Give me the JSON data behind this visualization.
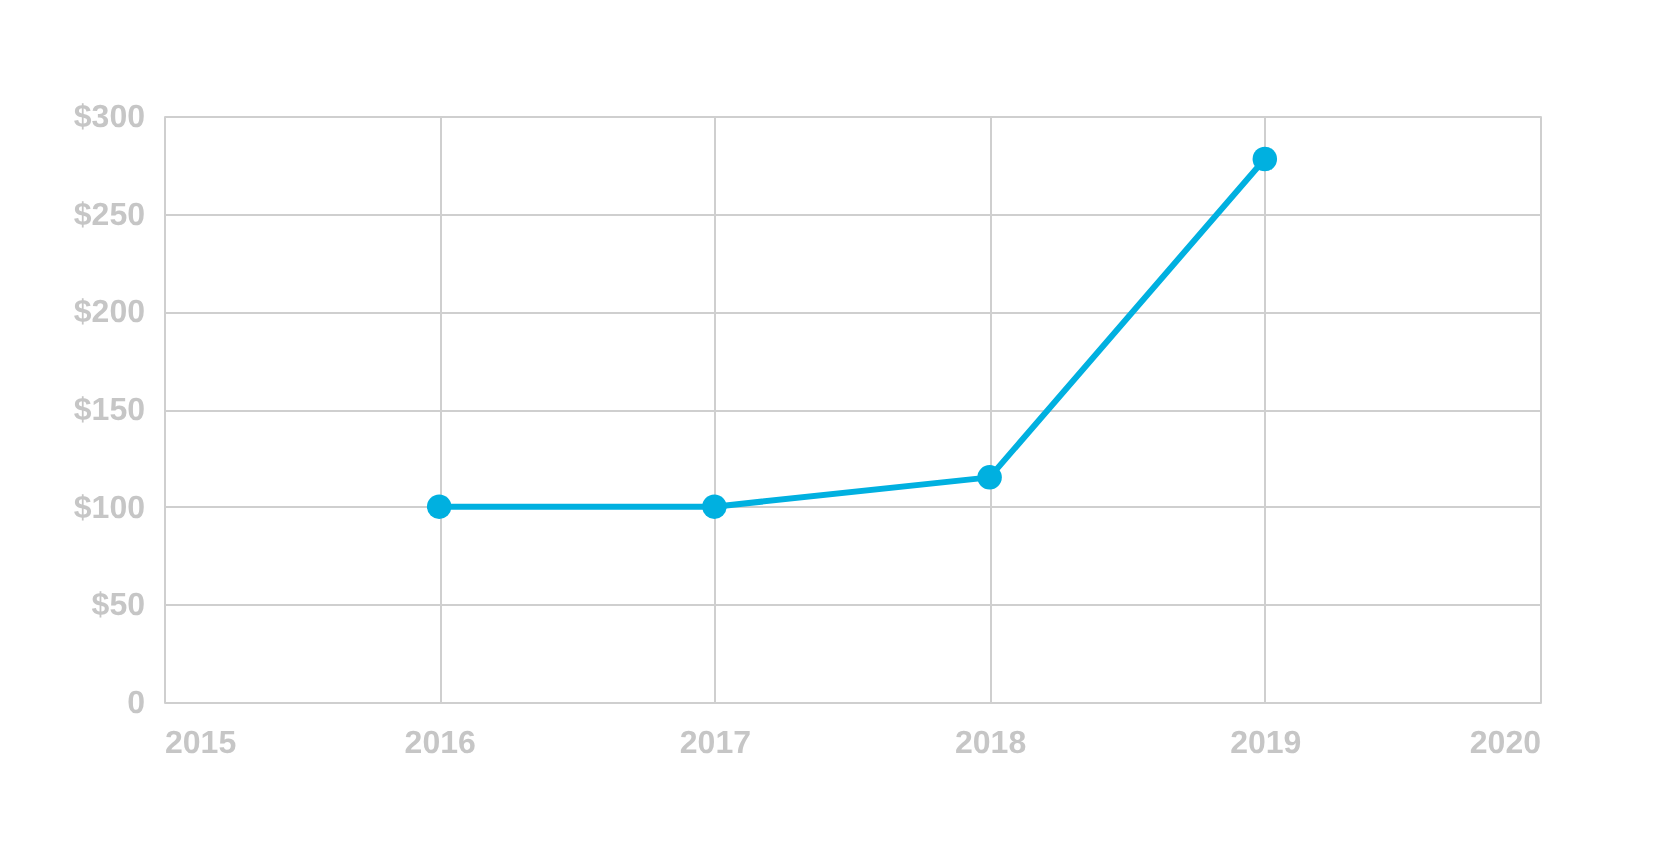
{
  "chart_data": {
    "type": "line",
    "x": [
      2016,
      2017,
      2018,
      2019
    ],
    "series": [
      {
        "color": "#00b0e0",
        "values": [
          100,
          100,
          115,
          278
        ]
      }
    ],
    "xlim": [
      2015,
      2020
    ],
    "xticks": [
      2015,
      2016,
      2017,
      2018,
      2019,
      2020
    ],
    "ylim": [
      0,
      300
    ],
    "yticks": [
      0,
      {
        "value": 50,
        "label": "$50"
      },
      {
        "value": 100,
        "label": "$100"
      },
      {
        "value": 150,
        "label": "$150"
      },
      {
        "value": 200,
        "label": "$200"
      },
      {
        "value": 250,
        "label": "$250"
      },
      {
        "value": 300,
        "label": "$300"
      }
    ],
    "grid": true,
    "marker": "circle",
    "line_style": "solid"
  }
}
